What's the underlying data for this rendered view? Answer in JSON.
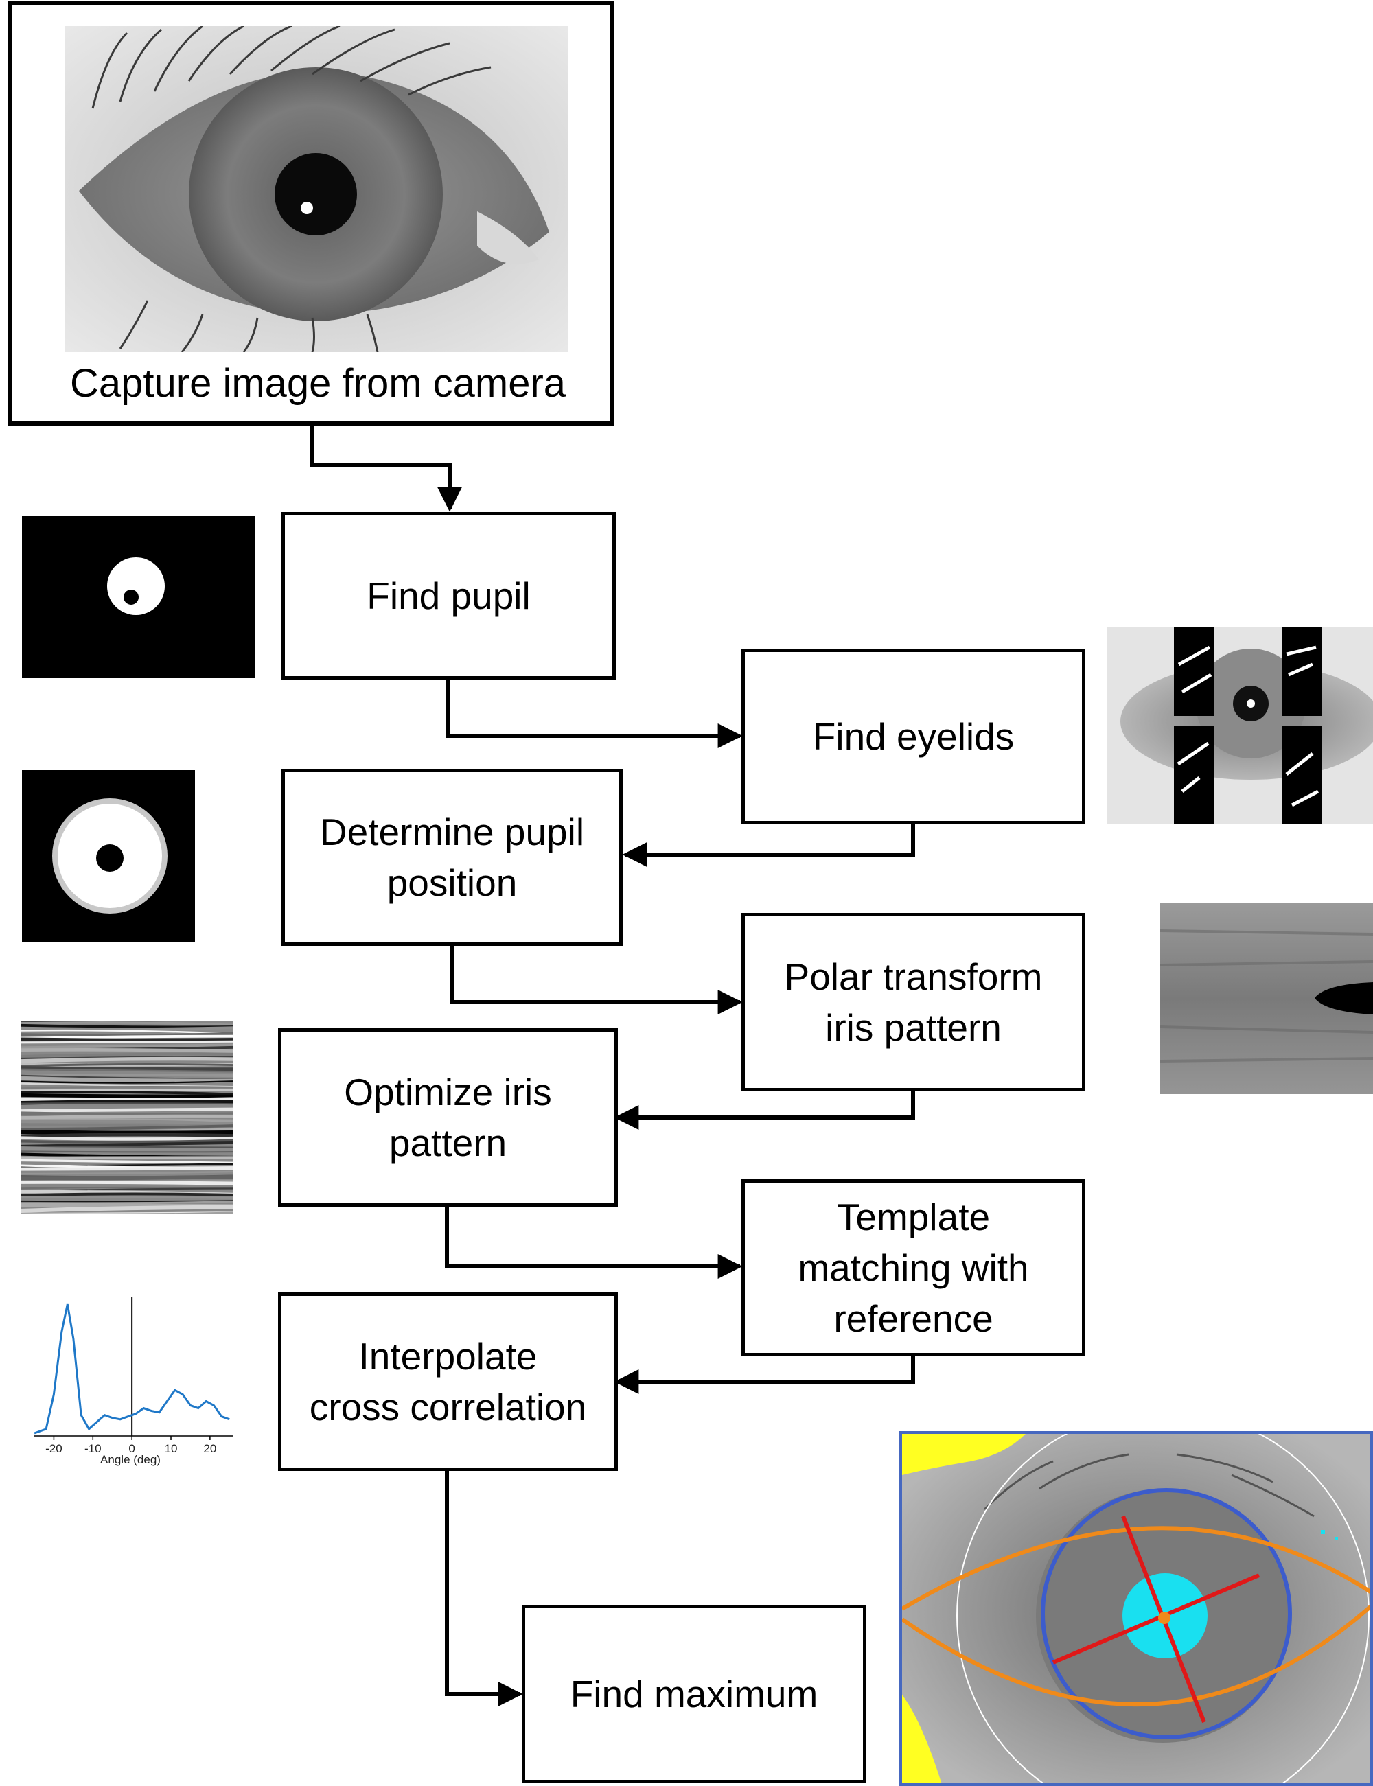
{
  "capture_caption": "Capture image from camera",
  "steps": {
    "find_pupil": [
      "Find pupil"
    ],
    "find_eyelids": [
      "Find eyelids"
    ],
    "determine_pupil_position": [
      "Determine pupil",
      "position"
    ],
    "polar_transform": [
      "Polar transform",
      "iris pattern"
    ],
    "optimize_iris": [
      "Optimize iris",
      "pattern"
    ],
    "template_matching": [
      "Template",
      "matching with",
      "reference"
    ],
    "interpolate": [
      "Interpolate",
      "cross correlation"
    ],
    "find_maximum": [
      "Find maximum"
    ]
  },
  "chart_data": {
    "type": "line",
    "xlabel": "Angle (deg)",
    "ylabel": "",
    "title": "",
    "xlim": [
      -25,
      26
    ],
    "xticks": [
      "-20",
      "-10",
      "0",
      "10",
      "20"
    ],
    "x": [
      -25,
      -22,
      -20,
      -18,
      -16.5,
      -15,
      -13,
      -11,
      -9,
      -7,
      -5,
      -3,
      -1,
      1,
      3,
      5,
      7,
      9,
      11,
      13,
      15,
      17,
      19,
      21,
      23,
      25
    ],
    "y": [
      0.02,
      0.05,
      0.3,
      0.75,
      0.95,
      0.7,
      0.15,
      0.05,
      0.1,
      0.15,
      0.13,
      0.12,
      0.14,
      0.16,
      0.2,
      0.18,
      0.17,
      0.25,
      0.33,
      0.3,
      0.22,
      0.2,
      0.25,
      0.22,
      0.14,
      0.12
    ],
    "color": "#1f78c8",
    "axis_line_x": 0
  },
  "colors": {
    "overlay_circle": "#3c5ccc",
    "overlay_eyelid": "#f08a1a",
    "overlay_cross": "#e01818",
    "overlay_pupil": "#19e0f0",
    "overlay_mask": "#ffff22"
  }
}
